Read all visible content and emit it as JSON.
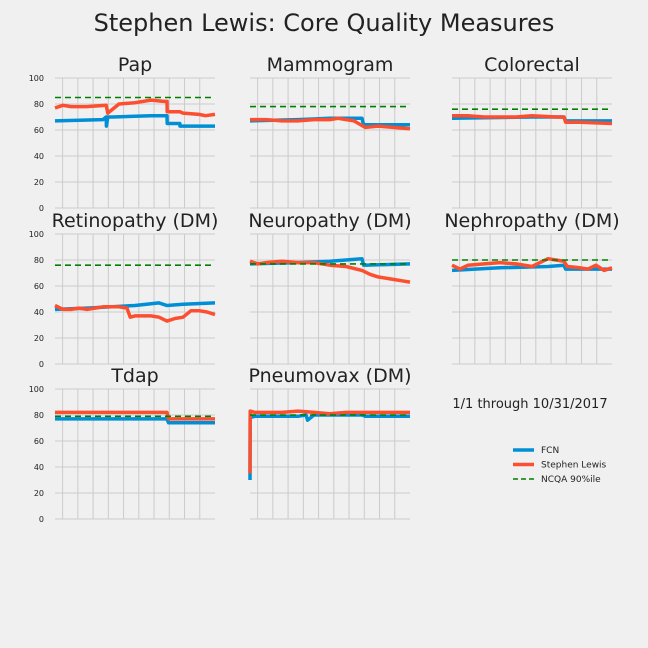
{
  "page_title": "Stephen Lewis: Core Quality Measures",
  "date_range": "1/1 through 10/31/2017",
  "legend": [
    {
      "label": "FCN",
      "color": "#008fd5",
      "style": "solid"
    },
    {
      "label": "Stephen Lewis",
      "color": "#fc4f30",
      "style": "solid"
    },
    {
      "label": "NCQA 90%ile",
      "color": "#008000",
      "style": "dashed"
    }
  ],
  "colors": {
    "background": "#f0f0f0",
    "grid": "#cbcbcb",
    "fcn": "#008fd5",
    "provider": "#fc4f30",
    "benchmark": "#008000"
  },
  "chart_data": [
    {
      "type": "line",
      "title": "Pap",
      "ylim": [
        0,
        100
      ],
      "yticks": [
        0,
        20,
        40,
        60,
        80,
        100
      ],
      "xlim": [
        0,
        1
      ],
      "benchmark": 85,
      "series": [
        {
          "name": "FCN",
          "x": [
            0,
            0.3,
            0.32,
            0.321,
            0.33,
            0.36,
            0.6,
            0.7,
            0.701,
            0.78,
            0.781,
            1
          ],
          "y": [
            67,
            68,
            70,
            63,
            70,
            70,
            71,
            71,
            65,
            65,
            63,
            63
          ]
        },
        {
          "name": "Stephen Lewis",
          "x": [
            0,
            0.05,
            0.1,
            0.2,
            0.32,
            0.33,
            0.4,
            0.5,
            0.6,
            0.68,
            0.7,
            0.701,
            0.78,
            0.8,
            0.9,
            0.94,
            1
          ],
          "y": [
            77,
            79,
            78,
            78,
            79,
            73,
            80,
            81,
            83,
            82,
            82,
            74,
            74,
            73,
            72,
            71,
            72
          ]
        }
      ]
    },
    {
      "type": "line",
      "title": "Mammogram",
      "ylim": [
        0,
        100
      ],
      "yticks": [
        0,
        20,
        40,
        60,
        80,
        100
      ],
      "xlim": [
        0,
        1
      ],
      "benchmark": 78,
      "series": [
        {
          "name": "FCN",
          "x": [
            0,
            0.3,
            0.5,
            0.7,
            0.71,
            1
          ],
          "y": [
            67,
            68,
            69,
            69,
            64,
            64
          ]
        },
        {
          "name": "Stephen Lewis",
          "x": [
            0,
            0.1,
            0.2,
            0.3,
            0.4,
            0.5,
            0.55,
            0.65,
            0.72,
            0.8,
            1
          ],
          "y": [
            68,
            68,
            67,
            67,
            68,
            68,
            69,
            67,
            62,
            63,
            61
          ]
        }
      ]
    },
    {
      "type": "line",
      "title": "Colorectal",
      "ylim": [
        0,
        100
      ],
      "yticks": [
        0,
        20,
        40,
        60,
        80,
        100
      ],
      "xlim": [
        0,
        1
      ],
      "benchmark": 76,
      "series": [
        {
          "name": "FCN",
          "x": [
            0,
            0.5,
            0.7,
            0.71,
            1
          ],
          "y": [
            69,
            70,
            70,
            67,
            67
          ]
        },
        {
          "name": "Stephen Lewis",
          "x": [
            0,
            0.1,
            0.2,
            0.3,
            0.4,
            0.5,
            0.65,
            0.7,
            0.71,
            0.8,
            1
          ],
          "y": [
            71,
            71,
            70,
            70,
            70,
            71,
            70,
            70,
            66,
            66,
            65
          ]
        }
      ]
    },
    {
      "type": "line",
      "title": "Retinopathy (DM)",
      "ylim": [
        0,
        100
      ],
      "yticks": [
        0,
        20,
        40,
        60,
        80,
        100
      ],
      "xlim": [
        0,
        1
      ],
      "benchmark": 76,
      "series": [
        {
          "name": "FCN",
          "x": [
            0,
            0.2,
            0.5,
            0.65,
            0.7,
            0.8,
            1
          ],
          "y": [
            42,
            43,
            45,
            47,
            45,
            46,
            47
          ]
        },
        {
          "name": "Stephen Lewis",
          "x": [
            0,
            0.05,
            0.1,
            0.15,
            0.2,
            0.25,
            0.3,
            0.4,
            0.45,
            0.47,
            0.5,
            0.55,
            0.6,
            0.65,
            0.7,
            0.75,
            0.8,
            0.85,
            0.9,
            0.95,
            1
          ],
          "y": [
            45,
            42,
            42,
            43,
            42,
            43,
            44,
            44,
            43,
            36,
            37,
            37,
            37,
            36,
            33,
            35,
            36,
            41,
            41,
            40,
            38
          ]
        }
      ]
    },
    {
      "type": "line",
      "title": "Neuropathy (DM)",
      "ylim": [
        0,
        100
      ],
      "yticks": [
        0,
        20,
        40,
        60,
        80,
        100
      ],
      "xlim": [
        0,
        1
      ],
      "benchmark": 77,
      "series": [
        {
          "name": "FCN",
          "x": [
            0,
            0.3,
            0.5,
            0.7,
            0.71,
            1
          ],
          "y": [
            77,
            78,
            79,
            81,
            76,
            77
          ]
        },
        {
          "name": "Stephen Lewis",
          "x": [
            0,
            0.05,
            0.1,
            0.2,
            0.3,
            0.4,
            0.5,
            0.6,
            0.7,
            0.75,
            0.8,
            0.9,
            0.95,
            1
          ],
          "y": [
            79,
            77,
            78,
            79,
            78,
            78,
            76,
            75,
            72,
            69,
            67,
            65,
            64,
            63
          ]
        }
      ]
    },
    {
      "type": "line",
      "title": "Nephropathy (DM)",
      "ylim": [
        0,
        100
      ],
      "yticks": [
        0,
        20,
        40,
        60,
        80,
        100
      ],
      "xlim": [
        0,
        1
      ],
      "benchmark": 80,
      "series": [
        {
          "name": "FCN",
          "x": [
            0,
            0.3,
            0.6,
            0.7,
            0.71,
            1
          ],
          "y": [
            72,
            74,
            75,
            76,
            73,
            73
          ]
        },
        {
          "name": "Stephen Lewis",
          "x": [
            0,
            0.05,
            0.1,
            0.2,
            0.3,
            0.4,
            0.5,
            0.55,
            0.6,
            0.65,
            0.7,
            0.72,
            0.8,
            0.85,
            0.9,
            0.95,
            1
          ],
          "y": [
            76,
            73,
            76,
            77,
            78,
            77,
            75,
            78,
            81,
            80,
            79,
            75,
            74,
            73,
            76,
            72,
            74
          ]
        }
      ]
    },
    {
      "type": "line",
      "title": "Tdap",
      "ylim": [
        0,
        100
      ],
      "yticks": [
        0,
        20,
        40,
        60,
        80,
        100
      ],
      "xlim": [
        0,
        1
      ],
      "benchmark": 79,
      "series": [
        {
          "name": "FCN",
          "x": [
            0,
            0.5,
            0.7,
            0.71,
            1
          ],
          "y": [
            77,
            77,
            77,
            74,
            74
          ]
        },
        {
          "name": "Stephen Lewis",
          "x": [
            0,
            0.2,
            0.4,
            0.6,
            0.7,
            0.71,
            0.8,
            1
          ],
          "y": [
            82,
            82,
            82,
            82,
            82,
            77,
            77,
            77
          ]
        }
      ]
    },
    {
      "type": "line",
      "title": "Pneumovax (DM)",
      "ylim": [
        0,
        100
      ],
      "yticks": [
        0,
        20,
        40,
        60,
        80,
        100
      ],
      "xlim": [
        0,
        1
      ],
      "benchmark": 80,
      "series": [
        {
          "name": "FCN",
          "x": [
            0,
            0.001,
            0.03,
            0.3,
            0.35,
            0.36,
            0.4,
            0.7,
            0.72,
            1
          ],
          "y": [
            30,
            78,
            79,
            79,
            80,
            76,
            80,
            80,
            79,
            79
          ]
        },
        {
          "name": "Stephen Lewis",
          "x": [
            0,
            0.001,
            0.03,
            0.2,
            0.3,
            0.4,
            0.5,
            0.6,
            0.7,
            0.8,
            1
          ],
          "y": [
            35,
            83,
            82,
            82,
            83,
            82,
            81,
            82,
            82,
            82,
            82
          ]
        }
      ]
    }
  ]
}
